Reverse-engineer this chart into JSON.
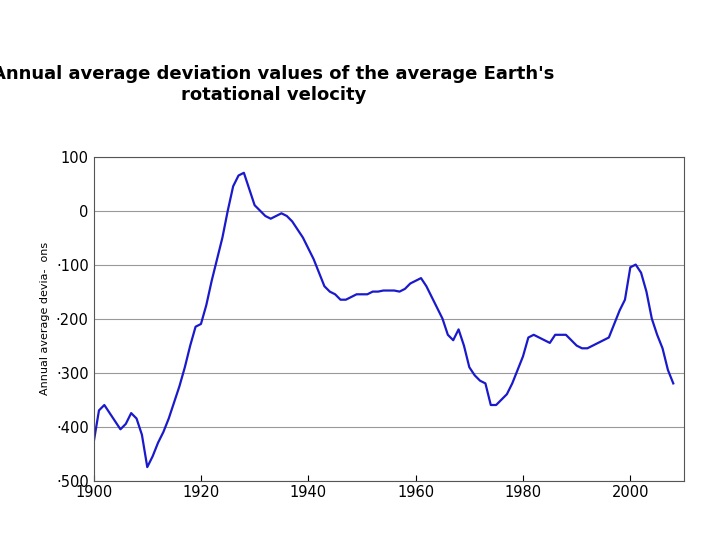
{
  "title": "Annual average deviation values of the average Earth's\nrotational velocity",
  "ylabel": "Annual average devia-  ons",
  "line_color": "#1a1acc",
  "line_width": 1.6,
  "background_color": "#ffffff",
  "xlim": [
    1900,
    2010
  ],
  "ylim": [
    -500,
    100
  ],
  "xticks": [
    1900,
    1920,
    1940,
    1960,
    1980,
    2000
  ],
  "yticks": [
    100,
    0,
    -100,
    -200,
    -300,
    -400,
    -500
  ],
  "ytick_labels": [
    "100",
    "0",
    "·100",
    "·200",
    "·300",
    "·400",
    "·500"
  ],
  "grid_color": "#999999",
  "spine_color": "#555555",
  "years": [
    1900,
    1901,
    1902,
    1903,
    1904,
    1905,
    1906,
    1907,
    1908,
    1909,
    1910,
    1911,
    1912,
    1913,
    1914,
    1915,
    1916,
    1917,
    1918,
    1919,
    1920,
    1921,
    1922,
    1923,
    1924,
    1925,
    1926,
    1927,
    1928,
    1929,
    1930,
    1931,
    1932,
    1933,
    1934,
    1935,
    1936,
    1937,
    1938,
    1939,
    1940,
    1941,
    1942,
    1943,
    1944,
    1945,
    1946,
    1947,
    1948,
    1949,
    1950,
    1951,
    1952,
    1953,
    1954,
    1955,
    1956,
    1957,
    1958,
    1959,
    1960,
    1961,
    1962,
    1963,
    1964,
    1965,
    1966,
    1967,
    1968,
    1969,
    1970,
    1971,
    1972,
    1973,
    1974,
    1975,
    1976,
    1977,
    1978,
    1979,
    1980,
    1981,
    1982,
    1983,
    1984,
    1985,
    1986,
    1987,
    1988,
    1989,
    1990,
    1991,
    1992,
    1993,
    1994,
    1995,
    1996,
    1997,
    1998,
    1999,
    2000,
    2001,
    2002,
    2003,
    2004,
    2005,
    2006,
    2007,
    2008
  ],
  "values": [
    -430,
    -370,
    -360,
    -375,
    -390,
    -405,
    -395,
    -375,
    -385,
    -415,
    -475,
    -455,
    -430,
    -410,
    -385,
    -355,
    -325,
    -290,
    -250,
    -215,
    -210,
    -175,
    -130,
    -90,
    -50,
    0,
    45,
    65,
    70,
    40,
    10,
    0,
    -10,
    -15,
    -10,
    -5,
    -10,
    -20,
    -35,
    -50,
    -70,
    -90,
    -115,
    -140,
    -150,
    -155,
    -165,
    -165,
    -160,
    -155,
    -155,
    -155,
    -150,
    -150,
    -148,
    -148,
    -148,
    -150,
    -145,
    -135,
    -130,
    -125,
    -140,
    -160,
    -180,
    -200,
    -230,
    -240,
    -220,
    -250,
    -290,
    -305,
    -315,
    -320,
    -360,
    -360,
    -350,
    -340,
    -320,
    -295,
    -270,
    -235,
    -230,
    -235,
    -240,
    -245,
    -230,
    -230,
    -230,
    -240,
    -250,
    -255,
    -255,
    -250,
    -245,
    -240,
    -235,
    -210,
    -185,
    -165,
    -105,
    -100,
    -115,
    -150,
    -200,
    -230,
    -255,
    -295,
    -320
  ]
}
